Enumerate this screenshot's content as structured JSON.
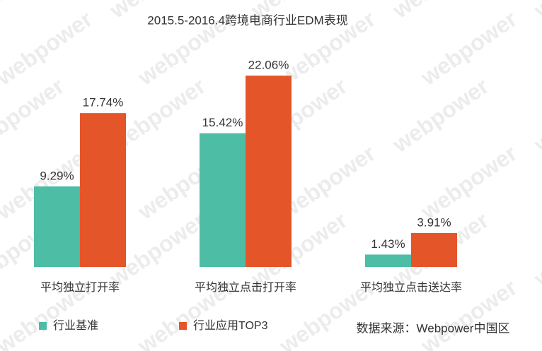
{
  "chart_data": {
    "type": "bar",
    "title": "2015.5-2016.4跨境电商行业EDM表现",
    "categories": [
      "平均独立打开率",
      "平均独立点击打开率",
      "平均独立点击送达率"
    ],
    "series": [
      {
        "name": "行业基准",
        "color": "#4dbda6",
        "values": [
          9.29,
          15.42,
          1.43
        ],
        "value_labels": [
          "9.29%",
          "15.42%",
          "1.43%"
        ]
      },
      {
        "name": "行业应用TOP3",
        "color": "#e5552a",
        "values": [
          17.74,
          22.06,
          3.91
        ],
        "value_labels": [
          "17.74%",
          "22.06%",
          "3.91%"
        ]
      }
    ],
    "source": "数据来源：Webpower中国区",
    "watermark": "webpower"
  }
}
